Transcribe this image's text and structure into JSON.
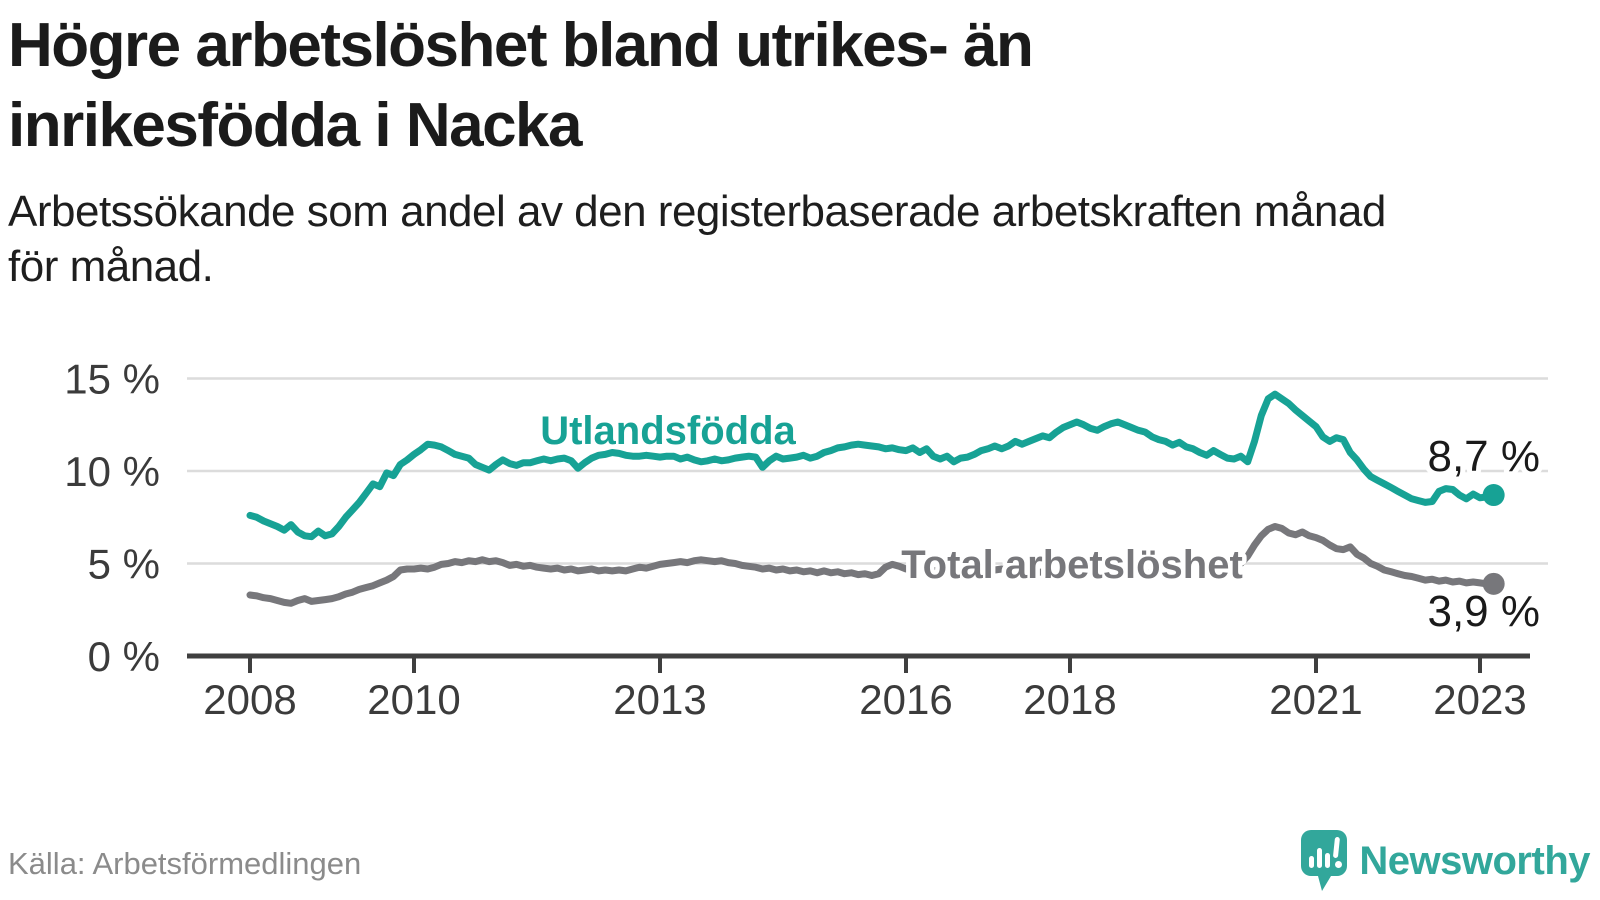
{
  "header": {
    "title_line1": "Högre arbetslöshet bland utrikes- än",
    "title_line2": "inrikesfödda i Nacka",
    "subtitle_line1": "Arbetssökande som andel av den registerbaserade arbetskraften månad",
    "subtitle_line2": "för månad."
  },
  "footer": {
    "source": "Källa: Arbetsförmedlingen",
    "brand": "Newsworthy"
  },
  "colors": {
    "teal": "#17a295",
    "gray": "#77777b",
    "text": "#1b1b1b",
    "axis": "#3f3f3f",
    "grid": "#dcdcdc",
    "tick_label": "#3b3b3b",
    "source_text": "#8b8b8b",
    "logo": "#32a79b"
  },
  "chart_data": {
    "type": "line",
    "unit": "%",
    "x_ticks": [
      2008,
      2010,
      2013,
      2016,
      2018,
      2021,
      2023
    ],
    "y_ticks": [
      {
        "value": 0,
        "label": "0 %"
      },
      {
        "value": 5,
        "label": "5 %"
      },
      {
        "value": 10,
        "label": "10 %"
      },
      {
        "value": 15,
        "label": "15 %"
      }
    ],
    "x_domain": [
      2008.0,
      2023.25
    ],
    "y_domain": [
      0,
      16
    ],
    "grid": true,
    "legend_position": "inline-labels",
    "start_year": 2008.0,
    "step_years": 0.0833333,
    "series": [
      {
        "name": "Utlandsfödda",
        "color": "#17a295",
        "end_label": "8,7 %",
        "end_value": 8.7,
        "values": [
          7.6,
          7.5,
          7.3,
          7.15,
          7.0,
          6.8,
          7.1,
          6.7,
          6.5,
          6.45,
          6.75,
          6.5,
          6.6,
          7.0,
          7.5,
          7.9,
          8.3,
          8.8,
          9.3,
          9.15,
          9.9,
          9.75,
          10.35,
          10.6,
          10.9,
          11.15,
          11.45,
          11.4,
          11.3,
          11.1,
          10.9,
          10.8,
          10.7,
          10.35,
          10.2,
          10.05,
          10.35,
          10.6,
          10.4,
          10.3,
          10.45,
          10.45,
          10.55,
          10.65,
          10.55,
          10.65,
          10.7,
          10.55,
          10.15,
          10.45,
          10.7,
          10.85,
          10.9,
          11.0,
          10.95,
          10.85,
          10.8,
          10.8,
          10.85,
          10.8,
          10.75,
          10.8,
          10.8,
          10.65,
          10.75,
          10.6,
          10.5,
          10.55,
          10.65,
          10.55,
          10.6,
          10.7,
          10.75,
          10.8,
          10.75,
          10.2,
          10.55,
          10.8,
          10.65,
          10.7,
          10.75,
          10.85,
          10.7,
          10.8,
          11.0,
          11.1,
          11.25,
          11.3,
          11.4,
          11.45,
          11.4,
          11.35,
          11.3,
          11.2,
          11.25,
          11.15,
          11.1,
          11.25,
          11.0,
          11.2,
          10.8,
          10.65,
          10.8,
          10.5,
          10.7,
          10.75,
          10.9,
          11.1,
          11.2,
          11.35,
          11.2,
          11.35,
          11.6,
          11.45,
          11.6,
          11.75,
          11.9,
          11.8,
          12.1,
          12.35,
          12.5,
          12.65,
          12.5,
          12.3,
          12.2,
          12.4,
          12.55,
          12.65,
          12.5,
          12.35,
          12.2,
          12.1,
          11.85,
          11.7,
          11.6,
          11.4,
          11.55,
          11.3,
          11.2,
          11.0,
          10.85,
          11.1,
          10.9,
          10.7,
          10.65,
          10.8,
          10.5,
          11.6,
          13.0,
          13.9,
          14.15,
          13.9,
          13.65,
          13.3,
          13.0,
          12.7,
          12.4,
          11.85,
          11.6,
          11.8,
          11.7,
          11.0,
          10.6,
          10.1,
          9.7,
          9.5,
          9.3,
          9.1,
          8.9,
          8.7,
          8.5,
          8.4,
          8.3,
          8.35,
          8.9,
          9.05,
          9.0,
          8.7,
          8.5,
          8.75,
          8.55,
          8.6,
          8.7
        ]
      },
      {
        "name": "Total arbetslöshet",
        "color": "#77777b",
        "end_label": "3,9 %",
        "end_value": 3.9,
        "values": [
          3.3,
          3.25,
          3.15,
          3.1,
          3.0,
          2.9,
          2.85,
          3.0,
          3.1,
          2.95,
          3.0,
          3.05,
          3.1,
          3.2,
          3.35,
          3.45,
          3.6,
          3.7,
          3.8,
          3.95,
          4.1,
          4.3,
          4.65,
          4.7,
          4.7,
          4.75,
          4.7,
          4.8,
          4.95,
          5.0,
          5.1,
          5.05,
          5.15,
          5.1,
          5.2,
          5.1,
          5.15,
          5.05,
          4.9,
          4.95,
          4.85,
          4.9,
          4.8,
          4.75,
          4.7,
          4.75,
          4.65,
          4.7,
          4.6,
          4.65,
          4.7,
          4.6,
          4.65,
          4.6,
          4.65,
          4.6,
          4.7,
          4.8,
          4.75,
          4.85,
          4.95,
          5.0,
          5.05,
          5.1,
          5.05,
          5.15,
          5.2,
          5.15,
          5.1,
          5.15,
          5.05,
          5.0,
          4.9,
          4.85,
          4.8,
          4.7,
          4.75,
          4.65,
          4.7,
          4.6,
          4.65,
          4.55,
          4.6,
          4.5,
          4.6,
          4.5,
          4.55,
          4.45,
          4.5,
          4.4,
          4.45,
          4.35,
          4.45,
          4.8,
          4.95,
          4.85,
          4.7,
          4.75,
          4.65,
          4.7,
          4.6,
          4.65,
          4.55,
          4.6,
          4.5,
          4.55,
          4.6,
          4.65,
          4.7,
          4.65,
          4.7,
          4.6,
          4.65,
          4.55,
          4.6,
          4.5,
          4.55,
          4.5,
          4.55,
          4.5,
          4.5,
          4.45,
          4.5,
          4.4,
          4.45,
          4.35,
          4.4,
          4.35,
          4.4,
          4.45,
          4.4,
          4.45,
          4.5,
          4.45,
          4.55,
          4.5,
          4.6,
          4.55,
          4.6,
          4.65,
          4.6,
          4.65,
          4.7,
          4.75,
          4.8,
          5.0,
          5.4,
          6.0,
          6.5,
          6.85,
          7.0,
          6.9,
          6.65,
          6.55,
          6.7,
          6.5,
          6.4,
          6.25,
          6.0,
          5.8,
          5.75,
          5.9,
          5.5,
          5.3,
          5.0,
          4.85,
          4.65,
          4.55,
          4.45,
          4.35,
          4.3,
          4.2,
          4.1,
          4.15,
          4.05,
          4.1,
          4.0,
          4.05,
          3.95,
          4.0,
          3.95,
          3.9,
          3.9
        ]
      }
    ]
  }
}
